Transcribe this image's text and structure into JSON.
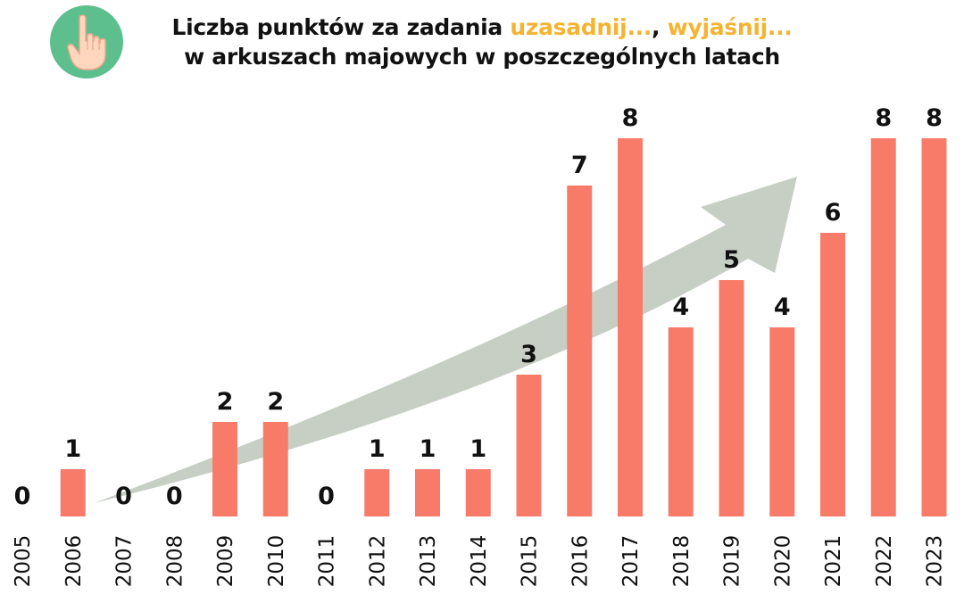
{
  "header": {
    "title_part1": "Liczba punktów za zadania ",
    "title_hl1": "uzasadnij...",
    "title_sep": ", ",
    "title_hl2": "wyjaśnij...",
    "title_line2": "w arkuszach majowych w poszczególnych latach",
    "logo_icon": "pointing-hand-icon"
  },
  "colors": {
    "bar": "#F87B6A",
    "arrow": "#C7CEC4",
    "highlight": "#F4B433",
    "logo_bg": "#5DBF8E"
  },
  "chart_data": {
    "type": "bar",
    "title": "Liczba punktów za zadania uzasadnij..., wyjaśnij... w arkuszach majowych w poszczególnych latach",
    "categories": [
      "2005",
      "2006",
      "2007",
      "2008",
      "2009",
      "2010",
      "2011",
      "2012",
      "2013",
      "2014",
      "2015",
      "2016",
      "2017",
      "2018",
      "2019",
      "2020",
      "2021",
      "2022",
      "2023"
    ],
    "values": [
      0,
      1,
      0,
      0,
      2,
      2,
      0,
      1,
      1,
      1,
      3,
      7,
      8,
      4,
      5,
      4,
      6,
      8,
      8
    ],
    "ylim": [
      0,
      8
    ],
    "xlabel": "",
    "ylabel": "",
    "grid": false,
    "data_labels": true,
    "trend_arrow": true
  }
}
